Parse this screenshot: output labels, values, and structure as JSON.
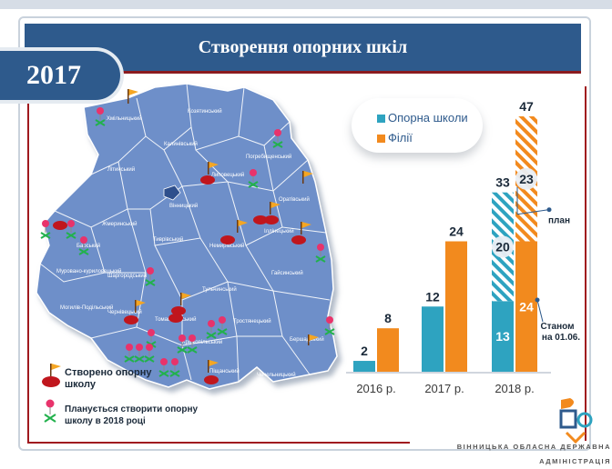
{
  "title": "Створення опорних шкіл",
  "year_badge": "2017",
  "footer": "ВІННИЦЬКА ОБЛАСНА ДЕРЖАВНА АДМІНІСТРАЦІЯ",
  "map": {
    "districts": [
      "Хмільницький",
      "Козятинський",
      "Калинівський",
      "Погребищенський",
      "Літинський",
      "Липовецький",
      "Оратівський",
      "Вінницький",
      "Іллінецький",
      "Жмеринський",
      "Немирівський",
      "Тиврівський",
      "Барський",
      "Гайсинський",
      "Шаргородський",
      "Тульчинський",
      "Мурованo-куриловецький",
      "Могилів-Подільський",
      "Чернівецький",
      "Томашпільський",
      "Тростянецький",
      "Крижопільський",
      "Бершадський",
      "Піщанський",
      "Чечельницький"
    ],
    "legend": {
      "created_label": "Створено опорну школу",
      "planned_label": "Планується створити опорну школу в 2018 році"
    }
  },
  "chart_data": {
    "type": "bar",
    "categories": [
      "2016 р.",
      "2017 р.",
      "2018 р."
    ],
    "series": [
      {
        "name": "Опорна школи",
        "color": "#2ea3c0",
        "values": [
          2,
          12,
          33
        ],
        "stack_2018": {
          "actual": 13,
          "planned_extra": 20
        }
      },
      {
        "name": "Філії",
        "color": "#f28a1e",
        "values": [
          8,
          24,
          47
        ],
        "stack_2018": {
          "actual": 24,
          "planned_extra": 23
        }
      }
    ],
    "annotations": {
      "plan_label": "план",
      "status_label": "Станом на 01.06."
    },
    "ylim": [
      0,
      47
    ]
  },
  "colors": {
    "title_bar": "#2e5a8c",
    "accent_red": "#a0191e",
    "map_fill": "#6e8fc9",
    "teal": "#2ea3c0",
    "orange": "#f28a1e"
  }
}
